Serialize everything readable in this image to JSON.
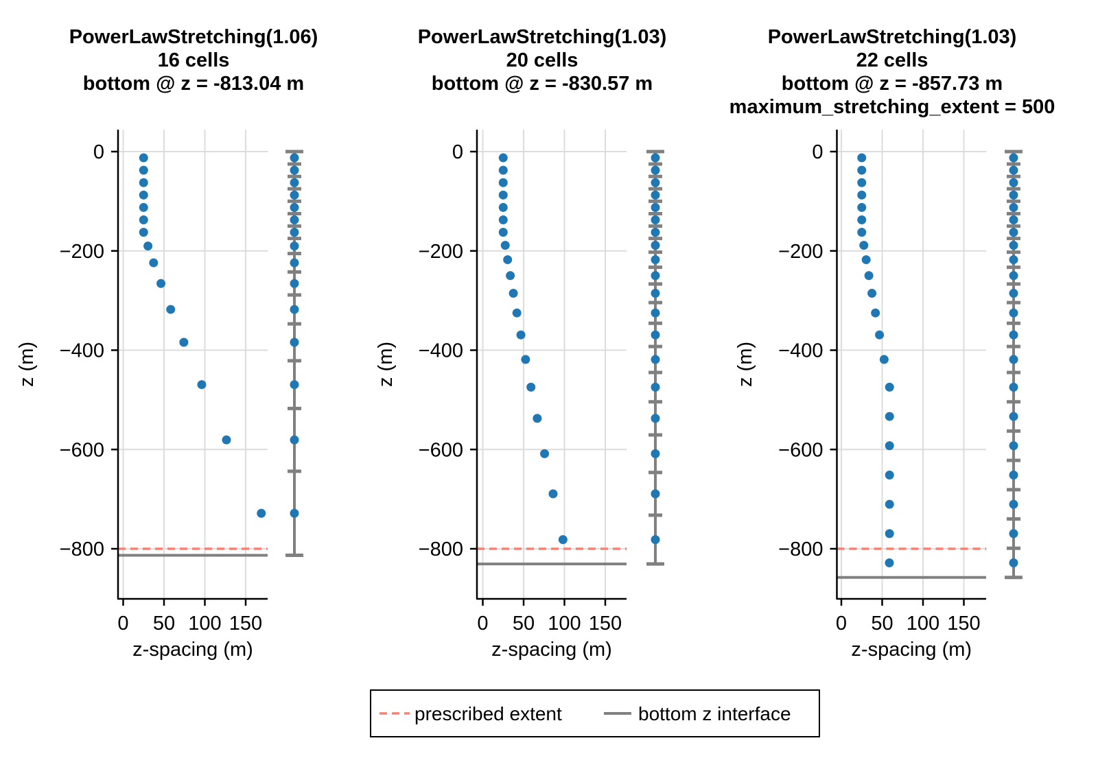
{
  "figure": {
    "background": "#ffffff",
    "colors": {
      "points": "#1f77b4",
      "interfaces": "#808080",
      "prescribed_extent": "#fa8072",
      "gridlines": "#dcdcdc",
      "axis": "#000000"
    },
    "legend": {
      "items": [
        {
          "label": "prescribed extent",
          "style": "dashed",
          "color": "#fa8072"
        },
        {
          "label": "bottom z interface",
          "style": "solid",
          "color": "#808080"
        }
      ]
    }
  },
  "chart_data": [
    {
      "type": "scatter",
      "title_lines": [
        "PowerLawStretching(1.06)",
        "16 cells",
        "bottom @ z = -813.04 m"
      ],
      "stretching_power": 1.06,
      "cells_label": "16 cells",
      "bottom_z": -813.04,
      "prescribed_extent": -800,
      "xlabel": "z-spacing (m)",
      "ylabel": "z (m)",
      "xticks": [
        0,
        50,
        100,
        150
      ],
      "yticks": [
        0,
        -200,
        -400,
        -600,
        -800
      ],
      "xlim": [
        -6,
        177
      ],
      "ylim": [
        -901,
        44
      ],
      "grid": true,
      "spacings": [
        25,
        25,
        25,
        25,
        25,
        25,
        25,
        30.32,
        37.23,
        46.25,
        58.2,
        74.27,
        96.18,
        126.46,
        169.13
      ],
      "centers": [
        -12.5,
        -37.5,
        -62.5,
        -87.5,
        -112.5,
        -137.5,
        -162.5,
        -190.16,
        -223.94,
        -265.68,
        -317.9,
        -384.14,
        -469.36,
        -580.68,
        -728.48
      ],
      "interfaces": [
        0,
        -25,
        -50,
        -75,
        -100,
        -125,
        -150,
        -175,
        -205.32,
        -242.55,
        -288.8,
        -347.0,
        -421.27,
        -517.45,
        -643.91,
        -813.04
      ]
    },
    {
      "type": "scatter",
      "title_lines": [
        "PowerLawStretching(1.03)",
        "20 cells",
        "bottom @ z = -830.57 m"
      ],
      "stretching_power": 1.03,
      "cells_label": "20 cells",
      "bottom_z": -830.57,
      "prescribed_extent": -800,
      "xlabel": "z-spacing (m)",
      "ylabel": "z (m)",
      "xticks": [
        0,
        50,
        100,
        150
      ],
      "yticks": [
        0,
        -200,
        -400,
        -600,
        -800
      ],
      "xlim": [
        -6,
        177
      ],
      "ylim": [
        -901,
        44
      ],
      "grid": true,
      "spacings": [
        25,
        25,
        25,
        25,
        25,
        25,
        25,
        27.53,
        30.41,
        33.7,
        37.45,
        41.75,
        46.69,
        52.4,
        59.0,
        66.69,
        75.64,
        86.12,
        98.19
      ],
      "centers": [
        -12.5,
        -37.5,
        -62.5,
        -87.5,
        -112.5,
        -137.5,
        -162.5,
        -188.77,
        -217.74,
        -249.79,
        -285.37,
        -324.97,
        -369.19,
        -418.73,
        -474.43,
        -537.28,
        -608.44,
        -689.32,
        -781.48
      ],
      "interfaces": [
        0,
        -25,
        -50,
        -75,
        -100,
        -125,
        -150,
        -175,
        -202.53,
        -232.94,
        -266.64,
        -304.09,
        -345.84,
        -392.53,
        -444.93,
        -503.93,
        -570.62,
        -646.26,
        -732.38,
        -830.57
      ]
    },
    {
      "type": "scatter",
      "title_lines": [
        "PowerLawStretching(1.03)",
        "22 cells",
        "bottom @ z = -857.73 m",
        "maximum_stretching_extent = 500"
      ],
      "stretching_power": 1.03,
      "cells_label": "22 cells",
      "bottom_z": -857.73,
      "maximum_stretching_extent": 500,
      "prescribed_extent": -800,
      "xlabel": "z-spacing (m)",
      "ylabel": "z (m)",
      "xticks": [
        0,
        50,
        100,
        150
      ],
      "yticks": [
        0,
        -200,
        -400,
        -600,
        -800
      ],
      "xlim": [
        -6,
        177
      ],
      "ylim": [
        -901,
        44
      ],
      "grid": true,
      "spacings": [
        25,
        25,
        25,
        25,
        25,
        25,
        25,
        27.53,
        30.41,
        33.7,
        37.45,
        41.75,
        46.69,
        52.4,
        59.0,
        59.0,
        59.0,
        59.0,
        59.0,
        59.0,
        58.8
      ],
      "centers": [
        -12.5,
        -37.5,
        -62.5,
        -87.5,
        -112.5,
        -137.5,
        -162.5,
        -188.77,
        -217.74,
        -249.79,
        -285.37,
        -324.97,
        -369.19,
        -418.73,
        -474.43,
        -533.43,
        -592.43,
        -651.43,
        -710.43,
        -769.43,
        -828.33
      ],
      "interfaces": [
        0,
        -25,
        -50,
        -75,
        -100,
        -125,
        -150,
        -175,
        -202.53,
        -232.94,
        -266.64,
        -304.09,
        -345.84,
        -392.53,
        -444.93,
        -503.93,
        -562.93,
        -621.93,
        -680.93,
        -739.93,
        -798.93,
        -857.73
      ]
    }
  ]
}
